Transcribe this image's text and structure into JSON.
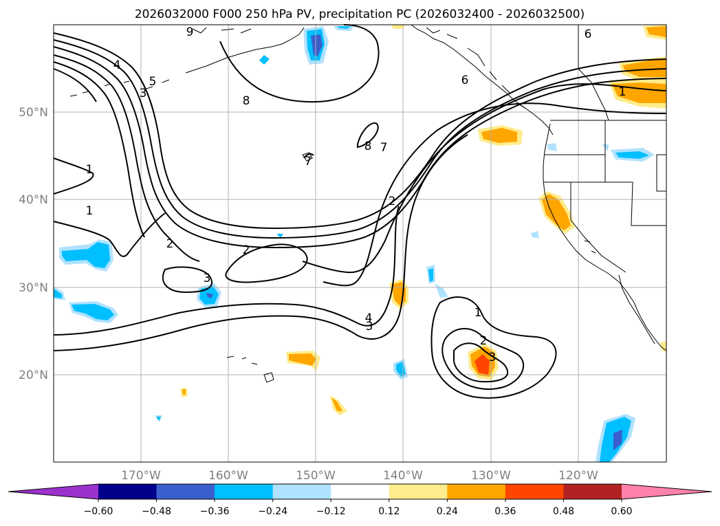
{
  "title": "2026032000 F000 250 hPa PV, precipitation PC (2026032400 - 2026032500)",
  "lon_ticks": [
    "170°W",
    "160°W",
    "150°W",
    "140°W",
    "130°W",
    "120°W"
  ],
  "lat_ticks": [
    "50°N",
    "40°N",
    "30°N",
    "20°N"
  ],
  "colorbar": {
    "levels": [
      "−0.60",
      "−0.48",
      "−0.36",
      "−0.24",
      "−0.12",
      "0.12",
      "0.24",
      "0.36",
      "0.48",
      "0.60"
    ],
    "colors": [
      "#9b32cc",
      "#00008b",
      "#3a5fcd",
      "#00bfff",
      "#b0e2ff",
      "#ffffff",
      "#ffec8b",
      "#ffa500",
      "#ff4500",
      "#b22222",
      "#ff82ab"
    ]
  },
  "contour_labels": [
    {
      "text": "9",
      "id": "c9"
    },
    {
      "text": "4",
      "id": "c4a"
    },
    {
      "text": "5",
      "id": "c5"
    },
    {
      "text": "3",
      "id": "c3a"
    },
    {
      "text": "8",
      "id": "c8a"
    },
    {
      "text": "6",
      "id": "c6a"
    },
    {
      "text": "1",
      "id": "c1a"
    },
    {
      "text": "1",
      "id": "c1b"
    },
    {
      "text": "1",
      "id": "c1c"
    },
    {
      "text": "8",
      "id": "c8b"
    },
    {
      "text": "7",
      "id": "c7a"
    },
    {
      "text": "7",
      "id": "c7b"
    },
    {
      "text": "2",
      "id": "c2a"
    },
    {
      "text": "2",
      "id": "c2b"
    },
    {
      "text": "2",
      "id": "c2c"
    },
    {
      "text": "3",
      "id": "c3b"
    },
    {
      "text": "4",
      "id": "c4b"
    },
    {
      "text": "3",
      "id": "c3c"
    },
    {
      "text": "1",
      "id": "c1d"
    },
    {
      "text": "2",
      "id": "c2d"
    },
    {
      "text": "3",
      "id": "c3d"
    },
    {
      "text": "6",
      "id": "c6b"
    }
  ]
}
